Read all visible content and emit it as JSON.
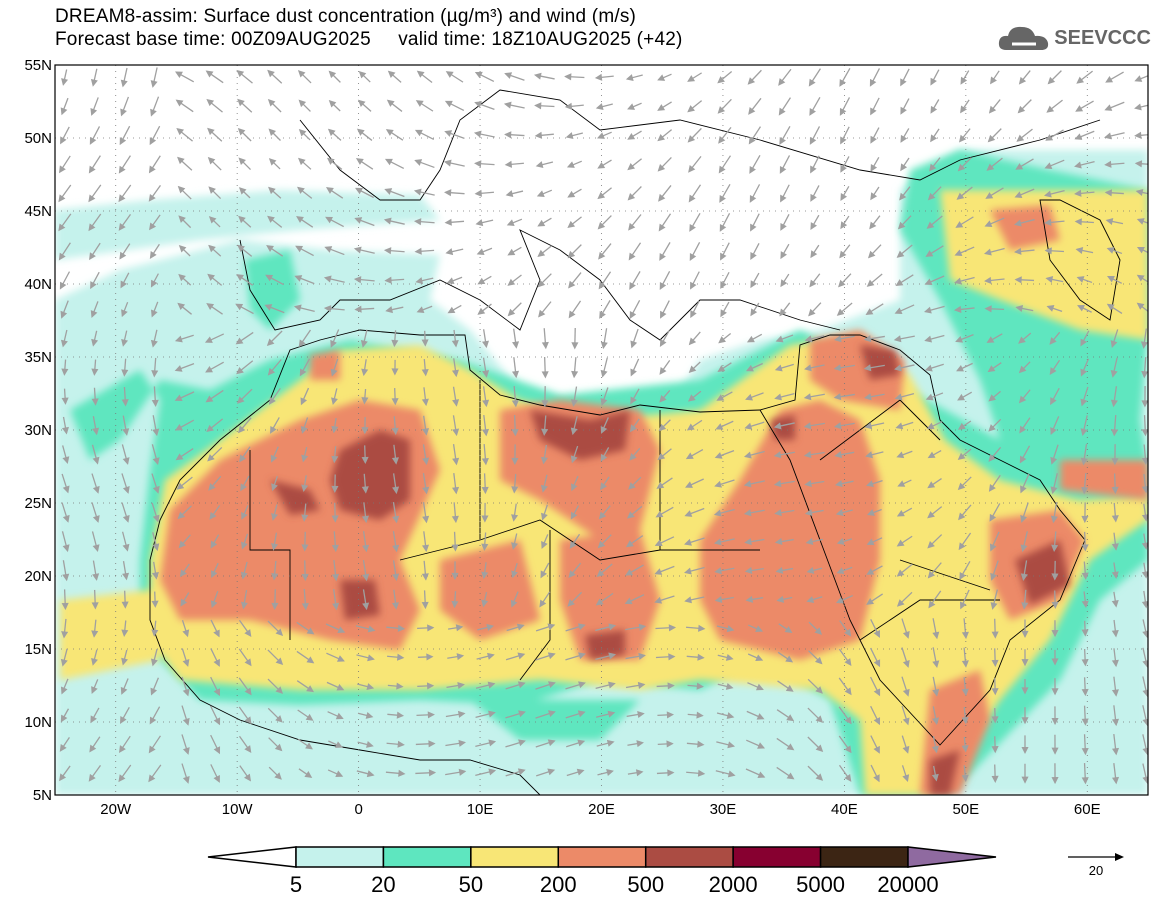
{
  "header": {
    "title_line1": "DREAM8-assim: Surface dust concentration (µg/m³) and wind (m/s)",
    "title_line2": "Forecast base time: 00Z09AUG2025     valid time: 18Z10AUG2025 (+42)",
    "logo_text": "SEEVCCC"
  },
  "axes": {
    "lat_labels": [
      "55N",
      "50N",
      "45N",
      "40N",
      "35N",
      "30N",
      "25N",
      "20N",
      "15N",
      "10N",
      "5N"
    ],
    "lat_values": [
      55,
      50,
      45,
      40,
      35,
      30,
      25,
      20,
      15,
      10,
      5
    ],
    "lon_labels": [
      "20W",
      "10W",
      "0",
      "10E",
      "20E",
      "30E",
      "40E",
      "50E",
      "60E"
    ],
    "lon_values": [
      -20,
      -10,
      0,
      10,
      20,
      30,
      40,
      50,
      60
    ],
    "lon_range": [
      -25,
      65
    ],
    "lat_range": [
      5,
      55
    ]
  },
  "colorbar": {
    "labels": [
      "5",
      "20",
      "50",
      "200",
      "500",
      "2000",
      "5000",
      "20000"
    ],
    "colors": [
      "#c5f2ec",
      "#5ee6bf",
      "#f8e676",
      "#ec8a68",
      "#ab4c43",
      "#870030",
      "#3c2514"
    ],
    "over_color": "#8f6aa0",
    "under_color": "#ffffff"
  },
  "wind_reference": {
    "value": "20"
  }
}
